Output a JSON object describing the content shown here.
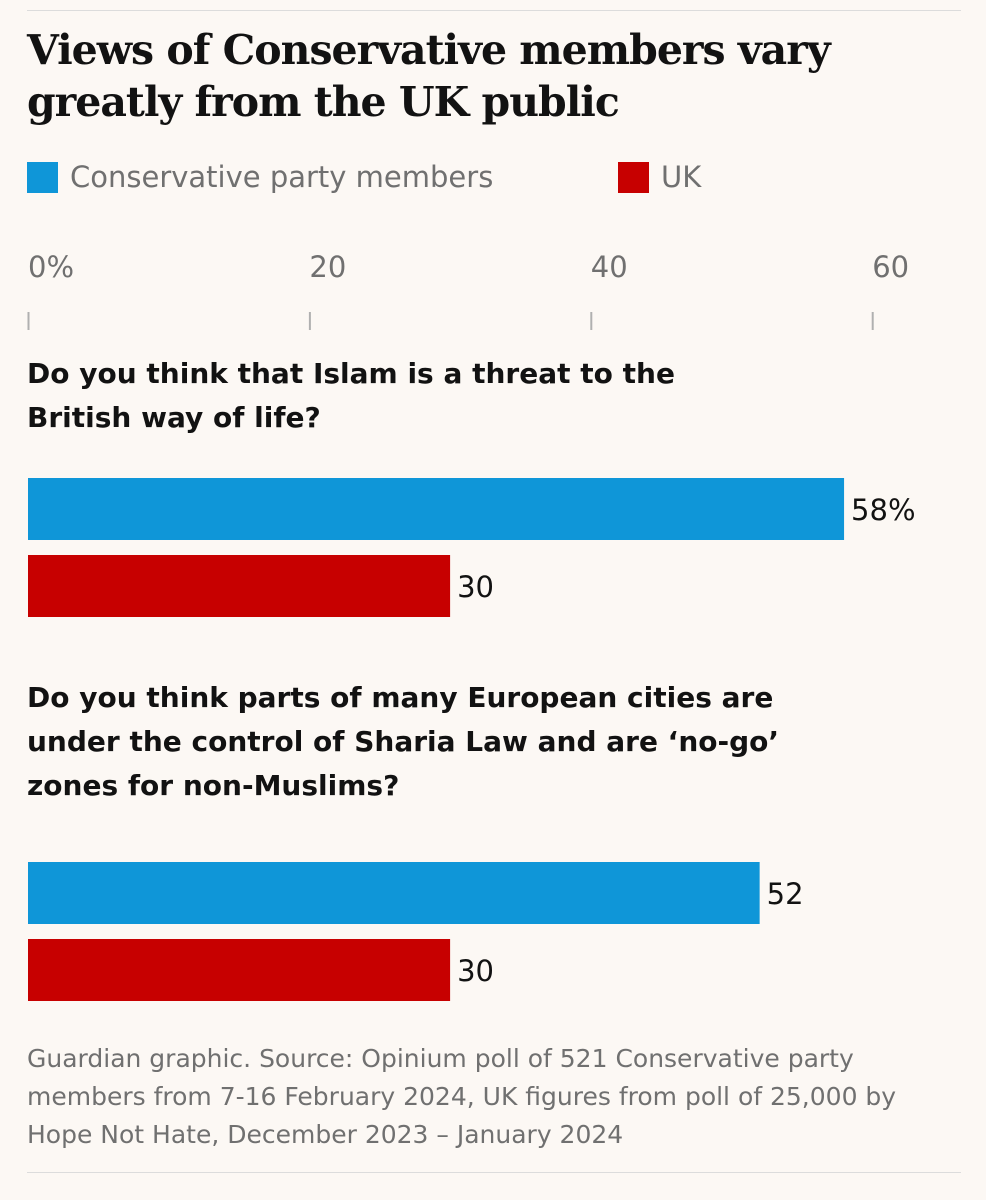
{
  "chart_data": {
    "type": "bar",
    "orientation": "horizontal",
    "title": "Views of Conservative members vary greatly from the UK public",
    "xlim": [
      0,
      60
    ],
    "ticks": [
      0,
      20,
      40,
      60
    ],
    "tick_labels": [
      "0%",
      "20",
      "40",
      "60"
    ],
    "legend_placement": "top-left",
    "series": [
      {
        "name": "Conservative party members",
        "color": "#0f96d8"
      },
      {
        "name": "UK",
        "color": "#c70000"
      }
    ],
    "groups": [
      {
        "question": "Do you think that Islam is a threat to the British way of life?",
        "values": [
          58,
          30
        ],
        "labels": [
          "58%",
          "30"
        ]
      },
      {
        "question": "Do you think parts of many European cities are under the control of Sharia Law and are ‘no-go’ zones for non-Muslims?",
        "values": [
          52,
          30
        ],
        "labels": [
          "52",
          "30"
        ]
      }
    ],
    "source": "Guardian graphic. Source: Opinium poll of 521 Conservative party members from 7-16 February 2024, UK figures from poll of 25,000 by Hope Not Hate, December 2023 – January 2024"
  }
}
